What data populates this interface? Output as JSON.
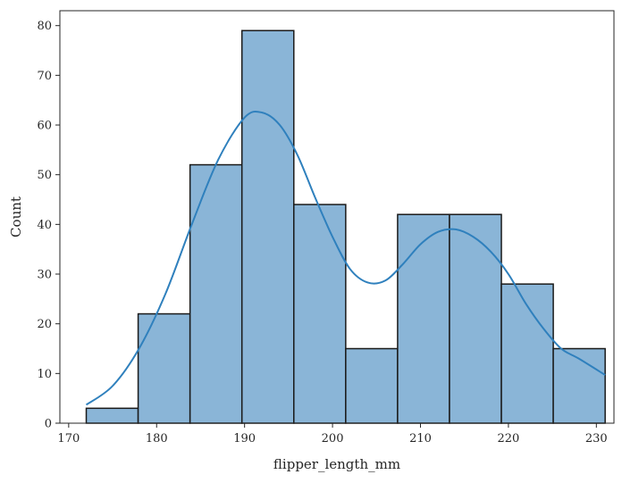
{
  "chart_data": {
    "type": "bar",
    "title": "",
    "xlabel": "flipper_length_mm",
    "ylabel": "Count",
    "xlim": [
      169,
      232
    ],
    "ylim": [
      0,
      83
    ],
    "x_ticks": [
      170,
      180,
      190,
      200,
      210,
      220,
      230
    ],
    "y_ticks": [
      0,
      10,
      20,
      30,
      40,
      50,
      60,
      70,
      80
    ],
    "bins": [
      {
        "x0": 172,
        "x1": 177.9,
        "count": 3
      },
      {
        "x0": 177.9,
        "x1": 183.8,
        "count": 22
      },
      {
        "x0": 183.8,
        "x1": 189.7,
        "count": 52
      },
      {
        "x0": 189.7,
        "x1": 195.6,
        "count": 79
      },
      {
        "x0": 195.6,
        "x1": 201.5,
        "count": 44
      },
      {
        "x0": 201.5,
        "x1": 207.4,
        "count": 15
      },
      {
        "x0": 207.4,
        "x1": 213.3,
        "count": 42
      },
      {
        "x0": 213.3,
        "x1": 219.2,
        "count": 42
      },
      {
        "x0": 219.2,
        "x1": 225.1,
        "count": 28
      },
      {
        "x0": 225.1,
        "x1": 231,
        "count": 15
      }
    ],
    "kde": {
      "x": [
        172,
        175,
        178,
        181,
        184,
        187,
        190,
        192,
        194,
        196,
        198,
        200,
        202,
        204,
        206,
        208,
        210,
        212,
        214,
        216,
        218,
        220,
        222,
        224,
        226,
        228,
        231
      ],
      "y": [
        3.7,
        7.5,
        15,
        26,
        40,
        53,
        61.5,
        62.5,
        60,
        54,
        45.5,
        37.5,
        31,
        28.3,
        28.7,
        32,
        36,
        38.5,
        39,
        37.5,
        34.5,
        30,
        24,
        19,
        15,
        13,
        9.7
      ]
    },
    "colors": {
      "bar_fill": "#8ab5d7",
      "bar_edge": "#1a1a1a",
      "kde_line": "#2f80bd",
      "axis": "#262626"
    },
    "grid": false,
    "legend": "none"
  }
}
